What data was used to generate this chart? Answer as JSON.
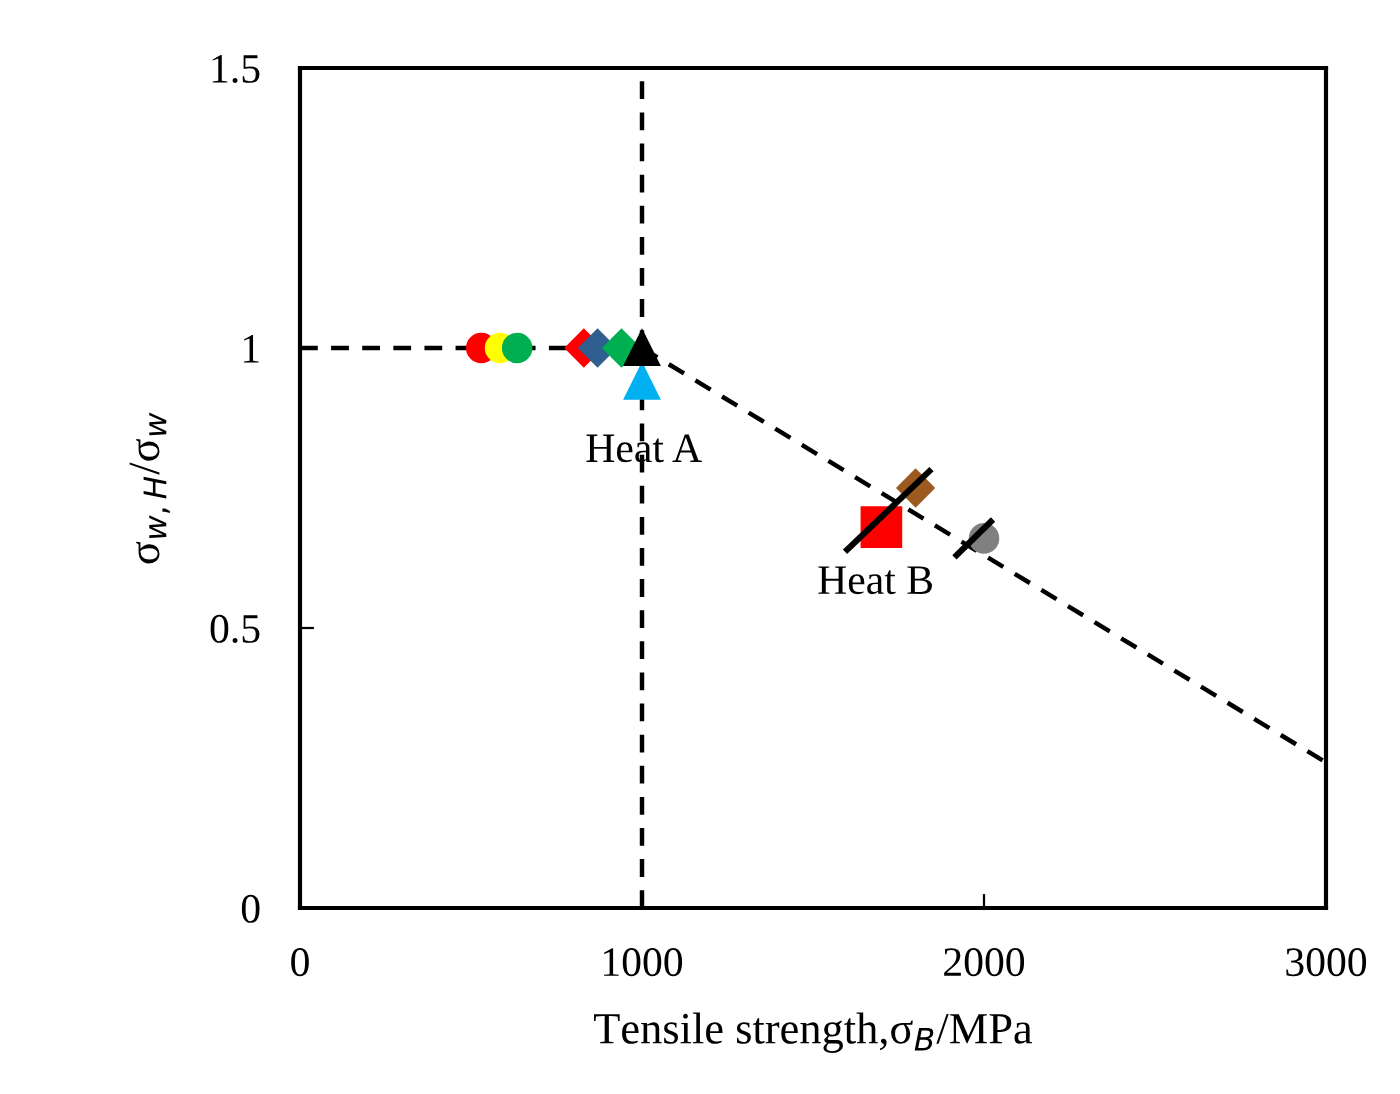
{
  "chart_data": {
    "type": "scatter",
    "xlabel": "Tensile strength,σ$_{B}$/MPa",
    "ylabel": "σ$_{w,H}$/σ$_{w}$",
    "xlim": [
      0,
      3000
    ],
    "xticks": [
      0,
      1000,
      2000,
      3000
    ],
    "ylim": [
      0,
      1.5
    ],
    "yticks": [
      0,
      0.5,
      1,
      1.5
    ],
    "grid": false,
    "legend": false,
    "ref_lines": [
      {
        "axis": "x",
        "value": 1000,
        "color": "#000000",
        "line_style": "dashed"
      }
    ],
    "annotations": [
      "Heat A",
      "Heat B"
    ],
    "series": [
      {
        "type": "line",
        "color": "#000000",
        "line_style": "dashed",
        "marker": "none",
        "x": [
          0,
          1000,
          3000
        ],
        "values": [
          1,
          1,
          0.26
        ]
      },
      {
        "type": "line",
        "color": "#000000",
        "line_style": "solid",
        "marker": "none",
        "x": [
          1600,
          1840
        ],
        "values": [
          0.64,
          0.78
        ]
      },
      {
        "type": "line",
        "color": "#000000",
        "line_style": "solid",
        "marker": "none",
        "x": [
          1920,
          2020
        ],
        "values": [
          0.63,
          0.69
        ]
      },
      {
        "color": "#ff0000",
        "marker": "circle",
        "x": [
          530
        ],
        "values": [
          1
        ]
      },
      {
        "color": "#ffff00",
        "marker": "circle",
        "x": [
          585
        ],
        "values": [
          1
        ]
      },
      {
        "color": "#00b050",
        "marker": "circle",
        "x": [
          635
        ],
        "values": [
          1
        ]
      },
      {
        "color": "#ff0000",
        "marker": "diamond",
        "x": [
          830
        ],
        "values": [
          1
        ]
      },
      {
        "color": "#2e5f8f",
        "marker": "diamond",
        "x": [
          870
        ],
        "values": [
          1
        ]
      },
      {
        "color": "#00b050",
        "marker": "diamond",
        "x": [
          940
        ],
        "values": [
          1
        ]
      },
      {
        "color": "#00b0f0",
        "marker": "triangle",
        "x": [
          1000
        ],
        "values": [
          0.94
        ]
      },
      {
        "color": "#000000",
        "marker": "triangle",
        "x": [
          1000
        ],
        "values": [
          1
        ]
      },
      {
        "color": "#ff0000",
        "marker": "square",
        "x": [
          1700
        ],
        "values": [
          0.68
        ]
      },
      {
        "color": "#9c5a1e",
        "marker": "diamond",
        "x": [
          1800
        ],
        "values": [
          0.75
        ]
      },
      {
        "color": "#808080",
        "marker": "circle",
        "x": [
          2000
        ],
        "values": [
          0.66
        ]
      }
    ]
  }
}
